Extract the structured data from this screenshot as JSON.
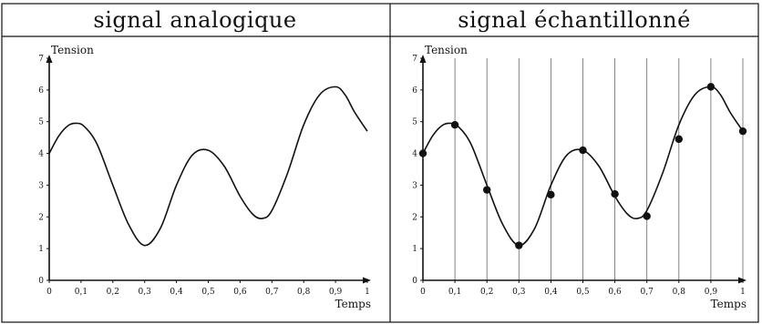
{
  "panels": [
    {
      "header": "signal analogique",
      "chart_data": {
        "type": "line",
        "title": "signal analogique",
        "xlabel": "Temps",
        "ylabel": "Tension",
        "xlim": [
          0,
          1
        ],
        "ylim": [
          0,
          7
        ],
        "x_ticks": [
          "0",
          "0,1",
          "0,2",
          "0,3",
          "0,4",
          "0,5",
          "0,6",
          "0,7",
          "0,8",
          "0,9",
          "1"
        ],
        "y_ticks": [
          "0",
          "1",
          "2",
          "3",
          "4",
          "5",
          "6",
          "7"
        ],
        "series": [
          {
            "x": [
              0,
              0.03,
              0.06,
              0.085,
              0.11,
              0.15,
              0.2,
              0.25,
              0.3,
              0.35,
              0.4,
              0.45,
              0.5,
              0.55,
              0.6,
              0.64,
              0.67,
              0.7,
              0.75,
              0.8,
              0.85,
              0.9,
              0.93,
              0.96,
              1
            ],
            "values": [
              4.0,
              4.55,
              4.88,
              4.95,
              4.85,
              4.3,
              3.0,
              1.75,
              1.1,
              1.65,
              3.0,
              3.95,
              4.1,
              3.6,
              2.65,
              2.08,
              1.95,
              2.2,
              3.4,
              4.9,
              5.85,
              6.1,
              5.85,
              5.3,
              4.7
            ]
          }
        ]
      }
    },
    {
      "header": "signal échantillonné",
      "chart_data": {
        "type": "line",
        "title": "signal échantillonné",
        "xlabel": "Temps",
        "ylabel": "Tension",
        "xlim": [
          0,
          1
        ],
        "ylim": [
          0,
          7
        ],
        "grid": "vertical lines at each sample",
        "x_ticks": [
          "0",
          "0,1",
          "0,2",
          "0,3",
          "0,4",
          "0,5",
          "0,6",
          "0,7",
          "0,8",
          "0,9",
          "1"
        ],
        "y_ticks": [
          "0",
          "1",
          "2",
          "3",
          "4",
          "5",
          "6",
          "7"
        ],
        "series": [
          {
            "x": [
              0,
              0.03,
              0.06,
              0.085,
              0.11,
              0.15,
              0.2,
              0.25,
              0.3,
              0.35,
              0.4,
              0.45,
              0.5,
              0.55,
              0.6,
              0.64,
              0.67,
              0.7,
              0.75,
              0.8,
              0.85,
              0.9,
              0.93,
              0.96,
              1
            ],
            "values": [
              4.0,
              4.55,
              4.88,
              4.95,
              4.85,
              4.3,
              3.0,
              1.75,
              1.1,
              1.65,
              3.0,
              3.95,
              4.1,
              3.6,
              2.65,
              2.08,
              1.95,
              2.2,
              3.4,
              4.9,
              5.85,
              6.1,
              5.85,
              5.3,
              4.7
            ]
          }
        ],
        "samples": {
          "x": [
            0,
            0.1,
            0.2,
            0.3,
            0.4,
            0.5,
            0.6,
            0.7,
            0.8,
            0.9,
            1.0
          ],
          "values": [
            4.0,
            4.9,
            2.85,
            1.1,
            2.7,
            4.1,
            2.72,
            2.02,
            4.45,
            6.1,
            4.7
          ]
        }
      }
    }
  ]
}
